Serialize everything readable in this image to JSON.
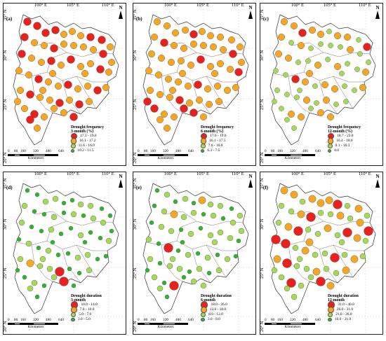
{
  "axes": {
    "lon_ticks": [
      "100° E",
      "105° E",
      "110° E"
    ],
    "lat_ticks": [
      "20° N",
      "25° N",
      "30° N",
      "35° N"
    ]
  },
  "north_label": "N",
  "scale": {
    "ticks": [
      "0",
      "80",
      "160",
      "320",
      "480",
      "640"
    ],
    "unit": "Kilometers"
  },
  "colors": {
    "class1": "#e8211e",
    "class2": "#f5a623",
    "class3": "#a6d95a",
    "class4": "#2fb52c"
  },
  "panels": [
    {
      "label": "(a)",
      "legend_title": "Drought frequency",
      "legend_sub": "3-month (%)",
      "classes": [
        "17.3 - 19.0",
        "16.1 - 17.2",
        "11.6 - 16.0",
        "10.2 - 11.5"
      ]
    },
    {
      "label": "(b)",
      "legend_title": "Drought frequency",
      "legend_sub": "6-month (%)",
      "classes": [
        "17.6 - 19.6",
        "16.1 - 17.5",
        "7.6 - 16.0",
        "6.3 - 7.5"
      ]
    },
    {
      "label": "(c)",
      "legend_title": "Drought frequency",
      "legend_sub": "12-month (%)",
      "classes": [
        "18.7 - 23.0",
        "16.4 - 18.6",
        "0.1 - 16.3",
        "0.0"
      ]
    },
    {
      "label": "(d)",
      "legend_title": "Drought duration",
      "legend_sub": "3-month",
      "classes": [
        "10.0 - 14.0",
        "7.0 - 10.0",
        "5.0 - 7.0",
        "3.0 - 5.0"
      ]
    },
    {
      "label": "(e)",
      "legend_title": "Drought duration",
      "legend_sub": "6-month",
      "classes": [
        "18.0 - 26.0",
        "12.0 - 18.0",
        "8.0 - 12.0",
        "3.0 - 8.0"
      ]
    },
    {
      "label": "(f)",
      "legend_title": "Drought duration",
      "legend_sub": "12-month",
      "classes": [
        "31.0 - 40.0",
        "26.0 - 31.0",
        "21.0 - 26.0",
        "10.0 - 21.0"
      ]
    }
  ]
}
